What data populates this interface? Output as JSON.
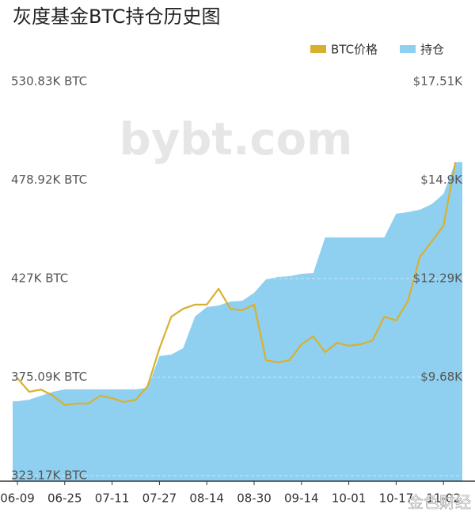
{
  "chart_data": {
    "type": "combo",
    "title": "灰度基金BTC持仓历史图",
    "watermarks": [
      "bybt.com",
      "金色财经"
    ],
    "categories": [
      "06-09",
      null,
      null,
      null,
      "06-25",
      null,
      null,
      null,
      "07-11",
      null,
      null,
      null,
      "07-27",
      null,
      null,
      null,
      "08-14",
      null,
      null,
      null,
      "08-30",
      null,
      null,
      null,
      "09-14",
      null,
      null,
      null,
      "10-01",
      null,
      null,
      null,
      "10-17",
      null,
      null,
      null,
      "11-02",
      null
    ],
    "series": [
      {
        "name": "BTC价格",
        "type": "line",
        "axis": "y2",
        "color": "#d9b02e",
        "values": [
          9650,
          9290,
          9350,
          9190,
          8940,
          8980,
          8980,
          9190,
          9120,
          9020,
          9080,
          9440,
          10440,
          11280,
          11490,
          11600,
          11600,
          12020,
          11490,
          11450,
          11600,
          10130,
          10070,
          10130,
          10550,
          10760,
          10340,
          10590,
          10510,
          10550,
          10650,
          11280,
          11180,
          11700,
          12860,
          13270,
          13690,
          15370
        ]
      },
      {
        "name": "持仓",
        "type": "area",
        "axis": "y",
        "color": "#8fd0f0",
        "values": [
          362370,
          363200,
          365290,
          367370,
          368620,
          368620,
          368620,
          368620,
          368620,
          368620,
          368620,
          369460,
          386140,
          386970,
          390310,
          406990,
          412000,
          412820,
          414910,
          415330,
          419500,
          426590,
          427840,
          428250,
          429500,
          429920,
          448690,
          448690,
          448690,
          448690,
          448690,
          448690,
          461200,
          462030,
          463280,
          466200,
          471620,
          488300
        ]
      }
    ],
    "ylim": [
      320250,
      530830
    ],
    "yticks": [
      {
        "value": 323170,
        "label": "323.17K BTC"
      },
      {
        "value": 375090,
        "label": "375.09K BTC"
      },
      {
        "value": 427000,
        "label": "427K BTC"
      },
      {
        "value": 478920,
        "label": "478.92K BTC"
      },
      {
        "value": 530830,
        "label": "530.83K BTC"
      }
    ],
    "y2lim": [
      6923,
      17510
    ],
    "y2ticks": [
      {
        "value": 9680,
        "label": "$9.68K"
      },
      {
        "value": 12290,
        "label": "$12.29K"
      },
      {
        "value": 14900,
        "label": "$14.9K"
      },
      {
        "value": 17510,
        "label": "$17.51K"
      }
    ],
    "grid": true,
    "legend": "top-right"
  }
}
